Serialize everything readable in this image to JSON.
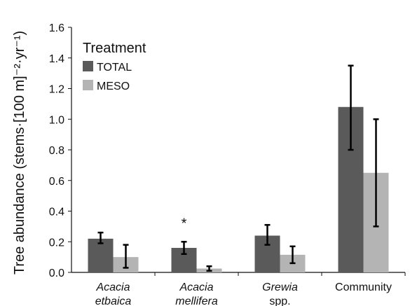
{
  "chart_data": {
    "type": "bar",
    "ylabel": "Tree abundance (stems·[100 m]⁻²·yr⁻¹)",
    "ylim": [
      0,
      1.6
    ],
    "yticks": [
      "0.0",
      "0.2",
      "0.4",
      "0.6",
      "0.8",
      "1.0",
      "1.2",
      "1.4",
      "1.6"
    ],
    "categories": [
      {
        "line1": "Acacia",
        "line2": "etbaica",
        "italic": true
      },
      {
        "line1": "Acacia",
        "line2": "mellifera",
        "italic": true
      },
      {
        "line1": "Grewia",
        "line2": "spp.",
        "italic": true,
        "line2_italic": false
      },
      {
        "line1": "Community",
        "line2": "",
        "italic": false
      }
    ],
    "legend": {
      "title": "Treatment",
      "placement": "top-left"
    },
    "series": [
      {
        "name": "TOTAL",
        "color": "#5a5a5a",
        "values": [
          0.22,
          0.16,
          0.24,
          1.08
        ],
        "err_low": [
          0.19,
          0.12,
          0.18,
          0.8
        ],
        "err_high": [
          0.26,
          0.2,
          0.31,
          1.35
        ]
      },
      {
        "name": "MESO",
        "color": "#b4b4b4",
        "values": [
          0.1,
          0.025,
          0.115,
          0.65
        ],
        "err_low": [
          0.03,
          0.01,
          0.06,
          0.3
        ],
        "err_high": [
          0.18,
          0.04,
          0.17,
          1.0
        ]
      }
    ],
    "annotations": [
      {
        "text": "*",
        "category_index": 1
      }
    ],
    "grid": false
  }
}
